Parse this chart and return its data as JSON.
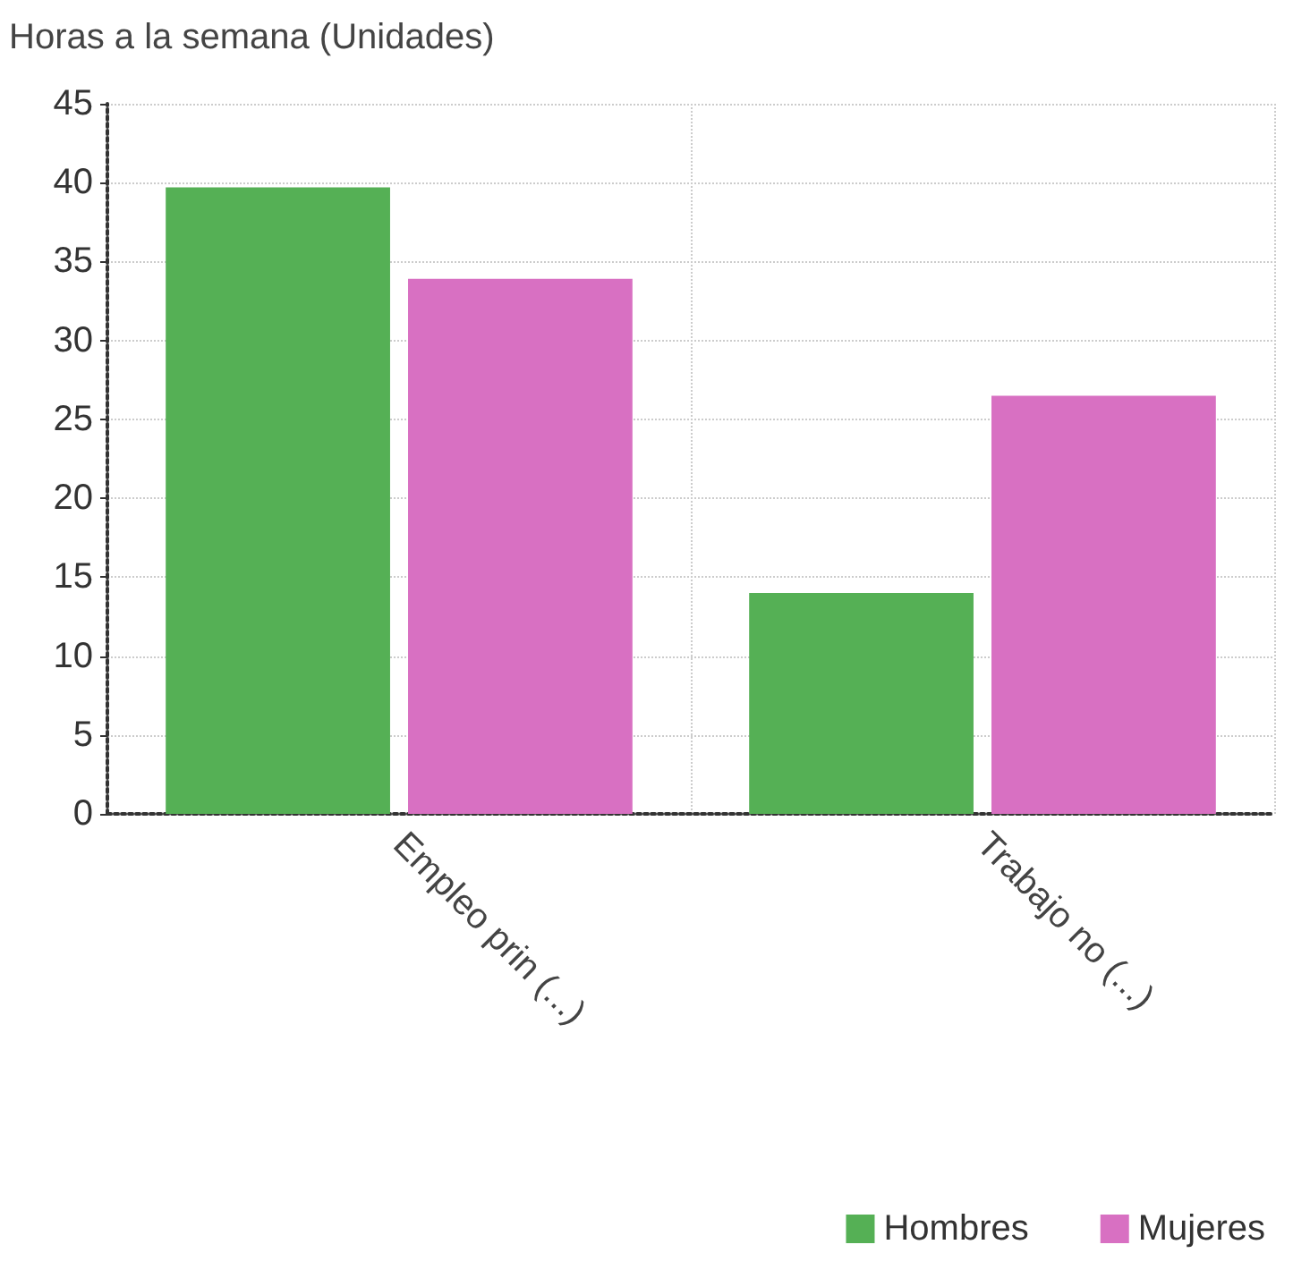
{
  "chart_data": {
    "type": "bar",
    "title": "Horas a la semana (Unidades)",
    "categories": [
      "Empleo prin (...)",
      "Trabajo no (...)"
    ],
    "series": [
      {
        "name": "Hombres",
        "color": "#55b055",
        "values": [
          39.7,
          14
        ]
      },
      {
        "name": "Mujeres",
        "color": "#d870c2",
        "values": [
          33.9,
          26.5
        ]
      }
    ],
    "ylim": [
      0,
      45
    ],
    "yticks": [
      0,
      5,
      10,
      15,
      20,
      25,
      30,
      35,
      40,
      45
    ],
    "grid": true,
    "legend": "bottom right"
  }
}
